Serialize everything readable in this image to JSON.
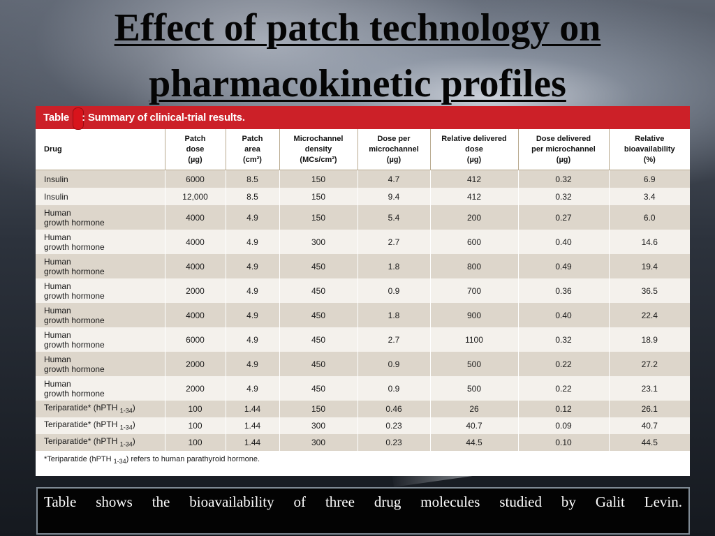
{
  "slide": {
    "title_line1": "Effect of patch technology on",
    "title_line2": "pharmacokinetic profiles",
    "caption": "Table shows the bioavailability of three drug molecules studied by Galit Levin."
  },
  "table_card": {
    "label_word": "Table",
    "label_rest": ": Summary of clinical-trial results.",
    "accent_color": "#cc2028",
    "headers": [
      {
        "l1": "Drug",
        "l2": "",
        "l3": ""
      },
      {
        "l1": "Patch",
        "l2": "dose",
        "l3": "(µg)"
      },
      {
        "l1": "Patch",
        "l2": "area",
        "l3": "(cm²)"
      },
      {
        "l1": "Microchannel",
        "l2": "density",
        "l3": "(MCs/cm²)"
      },
      {
        "l1": "Dose per",
        "l2": "microchannel",
        "l3": "(µg)"
      },
      {
        "l1": "Relative delivered",
        "l2": "dose",
        "l3": "(µg)"
      },
      {
        "l1": "Dose delivered",
        "l2": "per microchannel",
        "l3": "(µg)"
      },
      {
        "l1": "Relative",
        "l2": "bioavailability",
        "l3": "(%)"
      }
    ],
    "rows": [
      {
        "drug1": "Insulin",
        "drug2": "",
        "dose": "6000",
        "area": "8.5",
        "density": "150",
        "dpm": "4.7",
        "rdd": "412",
        "ddpm": "0.32",
        "bio": "6.9"
      },
      {
        "drug1": "Insulin",
        "drug2": "",
        "dose": "12,000",
        "area": "8.5",
        "density": "150",
        "dpm": "9.4",
        "rdd": "412",
        "ddpm": "0.32",
        "bio": "3.4"
      },
      {
        "drug1": "Human",
        "drug2": "growth hormone",
        "dose": "4000",
        "area": "4.9",
        "density": "150",
        "dpm": "5.4",
        "rdd": "200",
        "ddpm": "0.27",
        "bio": "6.0"
      },
      {
        "drug1": "Human",
        "drug2": "growth hormone",
        "dose": "4000",
        "area": "4.9",
        "density": "300",
        "dpm": "2.7",
        "rdd": "600",
        "ddpm": "0.40",
        "bio": "14.6"
      },
      {
        "drug1": "Human",
        "drug2": "growth hormone",
        "dose": "4000",
        "area": "4.9",
        "density": "450",
        "dpm": "1.8",
        "rdd": "800",
        "ddpm": "0.49",
        "bio": "19.4"
      },
      {
        "drug1": "Human",
        "drug2": "growth hormone",
        "dose": "2000",
        "area": "4.9",
        "density": "450",
        "dpm": "0.9",
        "rdd": "700",
        "ddpm": "0.36",
        "bio": "36.5"
      },
      {
        "drug1": "Human",
        "drug2": "growth hormone",
        "dose": "4000",
        "area": "4.9",
        "density": "450",
        "dpm": "1.8",
        "rdd": "900",
        "ddpm": "0.40",
        "bio": "22.4"
      },
      {
        "drug1": "Human",
        "drug2": "growth hormone",
        "dose": "6000",
        "area": "4.9",
        "density": "450",
        "dpm": "2.7",
        "rdd": "1100",
        "ddpm": "0.32",
        "bio": "18.9"
      },
      {
        "drug1": "Human",
        "drug2": "growth hormone",
        "dose": "2000",
        "area": "4.9",
        "density": "450",
        "dpm": "0.9",
        "rdd": "500",
        "ddpm": "0.22",
        "bio": "27.2"
      },
      {
        "drug1": "Human",
        "drug2": "growth hormone",
        "dose": "2000",
        "area": "4.9",
        "density": "450",
        "dpm": "0.9",
        "rdd": "500",
        "ddpm": "0.22",
        "bio": "23.1"
      },
      {
        "drug1": "Teriparatide* (hPTH ",
        "drug2": "1-34",
        "drug3": ")",
        "dose": "100",
        "area": "1.44",
        "density": "150",
        "dpm": "0.46",
        "rdd": "26",
        "ddpm": "0.12",
        "bio": "26.1"
      },
      {
        "drug1": "Teriparatide* (hPTH ",
        "drug2": "1-34",
        "drug3": ")",
        "dose": "100",
        "area": "1.44",
        "density": "300",
        "dpm": "0.23",
        "rdd": "40.7",
        "ddpm": "0.09",
        "bio": "40.7"
      },
      {
        "drug1": "Teriparatide* (hPTH ",
        "drug2": "1-34",
        "drug3": ")",
        "dose": "100",
        "area": "1.44",
        "density": "300",
        "dpm": "0.23",
        "rdd": "44.5",
        "ddpm": "0.10",
        "bio": "44.5"
      }
    ],
    "footnote_a": "*Teriparatide (hPTH ",
    "footnote_sub": "1-34",
    "footnote_b": ") refers to human parathyroid hormone."
  }
}
